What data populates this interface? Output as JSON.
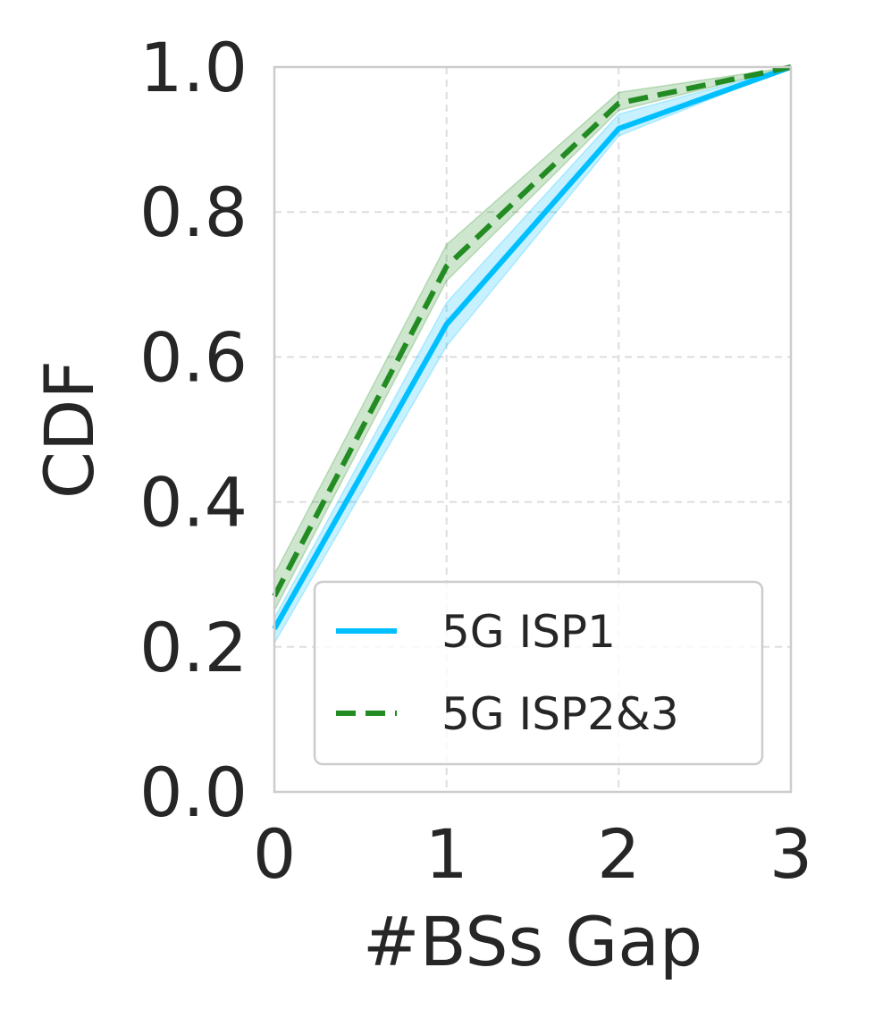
{
  "chart_data": {
    "type": "line",
    "title": "",
    "xlabel": "#BSs Gap",
    "ylabel": "CDF",
    "xlim": [
      0,
      3
    ],
    "ylim": [
      0.0,
      1.0
    ],
    "xticks": [
      0,
      1,
      2,
      3
    ],
    "xtick_labels": [
      "0",
      "1",
      "2",
      "3"
    ],
    "yticks": [
      0.0,
      0.2,
      0.4,
      0.6,
      0.8,
      1.0
    ],
    "ytick_labels": [
      "0.0",
      "0.2",
      "0.4",
      "0.6",
      "0.8",
      "1.0"
    ],
    "grid": true,
    "legend_position": "lower-right",
    "series": [
      {
        "name": "5G ISP1",
        "color": "#00bfff",
        "style": "solid",
        "x": [
          0,
          1,
          2,
          3
        ],
        "y": [
          0.225,
          0.645,
          0.915,
          1.0
        ],
        "y_lower": [
          0.205,
          0.615,
          0.905,
          1.0
        ],
        "y_upper": [
          0.24,
          0.675,
          0.935,
          1.0
        ]
      },
      {
        "name": "5G ISP2&3",
        "color": "#228b22",
        "style": "dashed",
        "x": [
          0,
          1,
          2,
          3
        ],
        "y": [
          0.27,
          0.725,
          0.95,
          1.0
        ],
        "y_lower": [
          0.25,
          0.705,
          0.94,
          1.0
        ],
        "y_upper": [
          0.3,
          0.755,
          0.965,
          1.0
        ]
      }
    ]
  }
}
